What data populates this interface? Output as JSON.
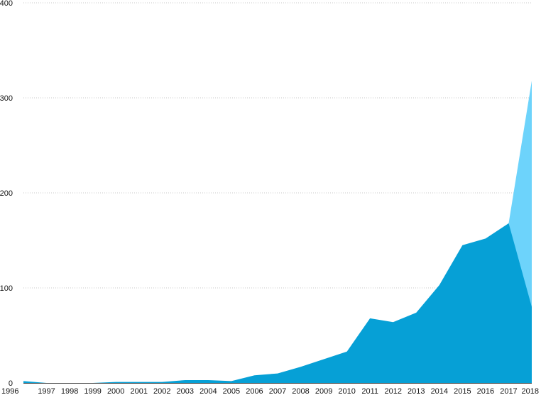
{
  "chart_data": {
    "type": "area",
    "stacked": false,
    "x": [
      1996,
      1997,
      1998,
      1999,
      2000,
      2001,
      2002,
      2003,
      2004,
      2005,
      2006,
      2007,
      2008,
      2009,
      2010,
      2011,
      2012,
      2013,
      2014,
      2015,
      2016,
      2017,
      2018
    ],
    "x_tick_labels": [
      "1996",
      "1997",
      "1998",
      "1999",
      "2000",
      "2001",
      "2002",
      "2003",
      "2004",
      "2005",
      "2006",
      "2007",
      "2008",
      "2009",
      "2010",
      "2011",
      "2012",
      "2013",
      "2014",
      "2015",
      "2016",
      "2017",
      "2018"
    ],
    "series": [
      {
        "color": "#6dd3fb",
        "values": [
          null,
          null,
          null,
          null,
          null,
          null,
          null,
          null,
          null,
          null,
          null,
          null,
          null,
          null,
          null,
          null,
          null,
          null,
          null,
          null,
          null,
          168,
          318
        ]
      },
      {
        "color": "#06a0d6",
        "values": [
          2,
          0,
          0,
          0,
          1,
          1,
          1,
          3,
          3,
          2,
          8,
          10,
          17,
          25,
          33,
          68,
          64,
          74,
          103,
          145,
          152,
          168,
          80
        ]
      }
    ],
    "ylim": [
      0,
      400
    ],
    "y_ticks": [
      0,
      100,
      200,
      300,
      400
    ],
    "y_tick_labels": [
      "0",
      "100",
      "200",
      "300",
      "400"
    ],
    "grid": true,
    "legend": "none",
    "title": "",
    "xlabel": "",
    "ylabel": ""
  }
}
